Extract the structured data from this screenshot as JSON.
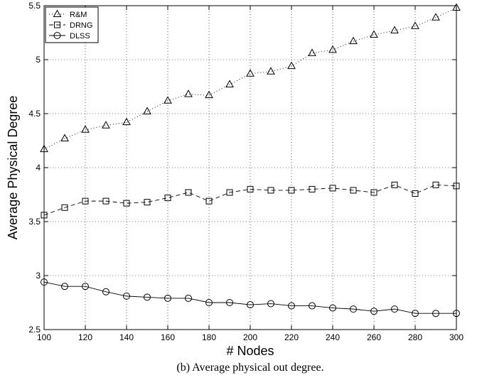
{
  "chart_data": {
    "type": "line",
    "title": "",
    "xlabel": "# Nodes",
    "ylabel": "Average Physical Degree",
    "xlim": [
      100,
      300
    ],
    "ylim": [
      2.5,
      5.5
    ],
    "xticks": [
      100,
      120,
      140,
      160,
      180,
      200,
      220,
      240,
      260,
      280,
      300
    ],
    "yticks": [
      2.5,
      3,
      3.5,
      4,
      4.5,
      5,
      5.5
    ],
    "xtick_labels": [
      "100",
      "120",
      "140",
      "160",
      "180",
      "200",
      "220",
      "240",
      "260",
      "280",
      "300"
    ],
    "ytick_labels": [
      "2.5",
      "3",
      "3.5",
      "4",
      "4.5",
      "5",
      "5.5"
    ],
    "grid": true,
    "legend_position": "top-left",
    "x": [
      100,
      110,
      120,
      130,
      140,
      150,
      160,
      170,
      180,
      190,
      200,
      210,
      220,
      230,
      240,
      250,
      260,
      270,
      280,
      290,
      300
    ],
    "series": [
      {
        "name": "R&M",
        "marker": "triangle",
        "dash": "dotted",
        "values": [
          4.17,
          4.27,
          4.35,
          4.39,
          4.42,
          4.52,
          4.62,
          4.68,
          4.67,
          4.77,
          4.87,
          4.89,
          4.94,
          5.06,
          5.09,
          5.17,
          5.23,
          5.27,
          5.31,
          5.39,
          5.48
        ]
      },
      {
        "name": "DRNG",
        "marker": "square",
        "dash": "dashed",
        "values": [
          3.56,
          3.63,
          3.69,
          3.69,
          3.67,
          3.68,
          3.72,
          3.77,
          3.69,
          3.77,
          3.8,
          3.79,
          3.79,
          3.8,
          3.81,
          3.79,
          3.77,
          3.84,
          3.76,
          3.84,
          3.83
        ]
      },
      {
        "name": "DLSS",
        "marker": "circle",
        "dash": "solid",
        "values": [
          2.94,
          2.9,
          2.9,
          2.85,
          2.81,
          2.8,
          2.79,
          2.79,
          2.75,
          2.75,
          2.73,
          2.74,
          2.72,
          2.72,
          2.7,
          2.69,
          2.67,
          2.69,
          2.65,
          2.65,
          2.65
        ]
      }
    ]
  },
  "caption": "(b) Average physical out degree."
}
